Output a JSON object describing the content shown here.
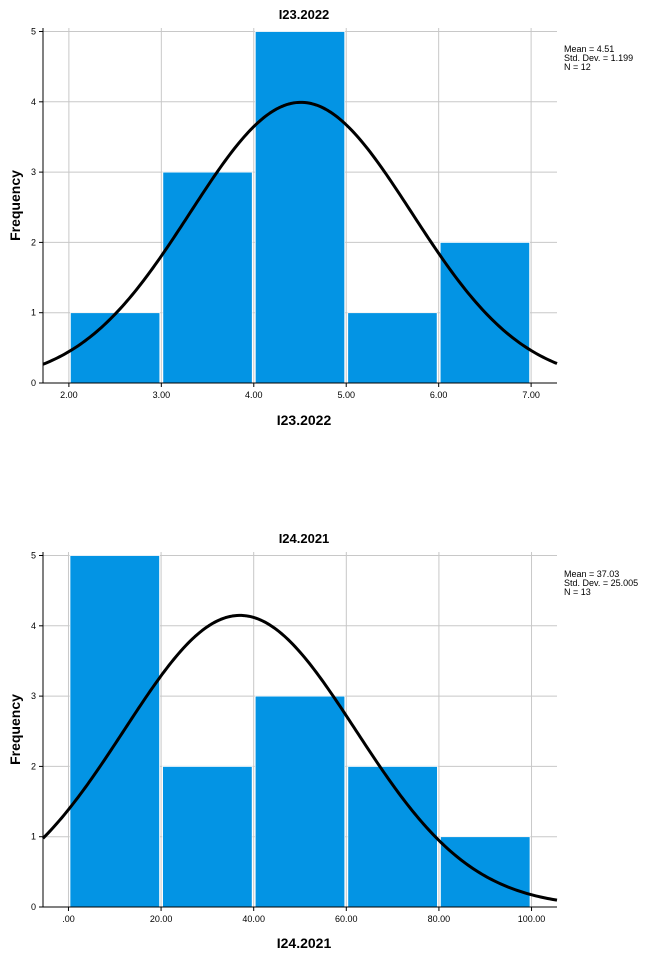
{
  "chart_data": [
    {
      "type": "bar",
      "title": "I23.2022",
      "xlabel": "I23.2022",
      "ylabel": "Frequency",
      "bins": [
        [
          2.0,
          3.0
        ],
        [
          3.0,
          4.0
        ],
        [
          4.0,
          5.0
        ],
        [
          5.0,
          6.0
        ],
        [
          6.0,
          7.0
        ]
      ],
      "values": [
        1,
        3,
        5,
        1,
        2
      ],
      "x_ticks": [
        2,
        3,
        4,
        5,
        6,
        7
      ],
      "x_tick_labels": [
        "2.00",
        "3.00",
        "4.00",
        "5.00",
        "6.00",
        "7.00"
      ],
      "xlim": [
        1.72,
        7.28
      ],
      "y_ticks": [
        0,
        1,
        2,
        3,
        4,
        5
      ],
      "y_tick_labels": [
        "0",
        "1",
        "2",
        "3",
        "4",
        "5"
      ],
      "ylim": [
        0,
        5.05
      ],
      "grid": true,
      "bar_color": "#0394e4",
      "normal_curve": {
        "mean": 4.51,
        "std": 1.199,
        "n": 12,
        "bin_width": 1
      },
      "stats": [
        "Mean = 4.51",
        "Std. Dev. = 1.199",
        "N = 12"
      ],
      "legend_position": "top-right"
    },
    {
      "type": "bar",
      "title": "I24.2021",
      "xlabel": "I24.2021",
      "ylabel": "Frequency",
      "bins": [
        [
          0,
          20
        ],
        [
          20,
          40
        ],
        [
          40,
          60
        ],
        [
          60,
          80
        ],
        [
          80,
          100
        ]
      ],
      "values": [
        5,
        2,
        3,
        2,
        1
      ],
      "x_ticks": [
        0,
        20,
        40,
        60,
        80,
        100
      ],
      "x_tick_labels": [
        ".00",
        "20.00",
        "40.00",
        "60.00",
        "80.00",
        "100.00"
      ],
      "xlim": [
        -5.5,
        105.5
      ],
      "y_ticks": [
        0,
        1,
        2,
        3,
        4,
        5
      ],
      "y_tick_labels": [
        "0",
        "1",
        "2",
        "3",
        "4",
        "5"
      ],
      "ylim": [
        0,
        5.05
      ],
      "grid": true,
      "bar_color": "#0394e4",
      "normal_curve": {
        "mean": 37.03,
        "std": 25.005,
        "n": 13,
        "bin_width": 20
      },
      "stats": [
        "Mean = 37.03",
        "Std. Dev. = 25.005",
        "N = 13"
      ],
      "legend_position": "top-right"
    }
  ]
}
